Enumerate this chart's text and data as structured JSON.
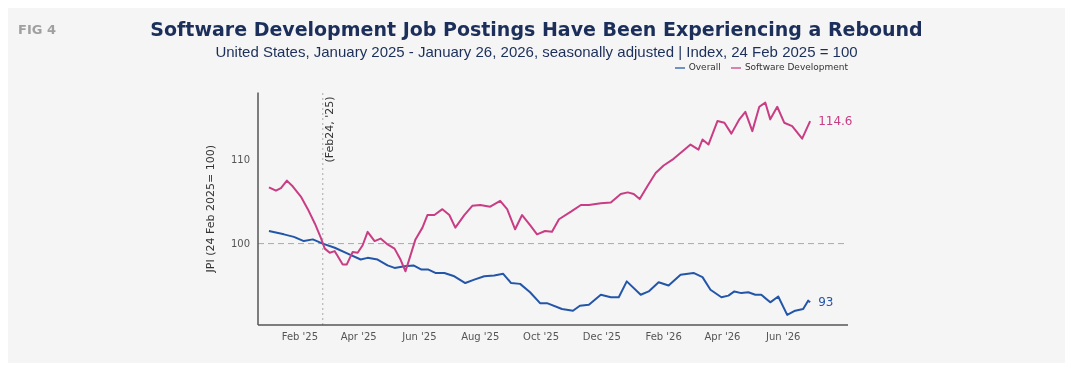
{
  "chart_data": {
    "type": "line",
    "title": "Software Development Job Postings Have Been Experiencing a Rebound",
    "subtitle": "United States, January 2025 - January 26, 2026, seasonally adjusted | Index, 24 Feb 2025 = 100",
    "ylabel": "JPI (24 Feb 2025= 100)",
    "annotations": [
      "FIG 4"
    ],
    "legend": "top right",
    "grid": false,
    "marker": "none",
    "line_style": "solid",
    "xlim": [
      "2024-12-21",
      "2026-08-05"
    ],
    "xticks": [
      {
        "value": "2025-02-01",
        "label": "Feb '25"
      },
      {
        "value": "2025-04-01",
        "label": "Apr '25"
      },
      {
        "value": "2025-06-01",
        "label": "Jun '25"
      },
      {
        "value": "2025-08-01",
        "label": "Aug '25"
      },
      {
        "value": "2025-10-01",
        "label": "Oct '25"
      },
      {
        "value": "2025-12-01",
        "label": "Dec '25"
      },
      {
        "value": "2026-02-01",
        "label": "Feb '26"
      },
      {
        "value": "2026-04-01",
        "label": "Apr '26"
      },
      {
        "value": "2026-06-01",
        "label": "Jun '26"
      }
    ],
    "ylim": [
      90.3,
      118
    ],
    "yticks": [
      100,
      110
    ],
    "ref_lines": [
      {
        "axis": "x",
        "value": "2025-02-24",
        "label": "(Feb24, '25)",
        "color": "#aaaaaa",
        "line_style": "dotted"
      },
      {
        "axis": "y",
        "value": 100,
        "label": null,
        "color": "#aaaaaa",
        "line_style": "dashed"
      }
    ],
    "series": [
      {
        "name": "Overall",
        "color": "#2356a8",
        "x": [
          "2025-01-01",
          "2025-01-16",
          "2025-01-26",
          "2025-02-05",
          "2025-02-14",
          "2025-02-24",
          "2025-03-08",
          "2025-03-21",
          "2025-04-03",
          "2025-04-10",
          "2025-04-20",
          "2025-04-30",
          "2025-05-07",
          "2025-05-17",
          "2025-05-26",
          "2025-06-03",
          "2025-06-10",
          "2025-06-17",
          "2025-06-26",
          "2025-07-06",
          "2025-07-17",
          "2025-07-26",
          "2025-08-05",
          "2025-08-15",
          "2025-08-24",
          "2025-09-01",
          "2025-09-10",
          "2025-09-20",
          "2025-09-30",
          "2025-10-07",
          "2025-10-22",
          "2025-11-02",
          "2025-11-09",
          "2025-11-18",
          "2025-11-30",
          "2025-12-10",
          "2025-12-18",
          "2025-12-26",
          "2026-01-09",
          "2026-01-17",
          "2026-01-27",
          "2026-02-06",
          "2026-02-18",
          "2026-03-03",
          "2026-03-12",
          "2026-03-20",
          "2026-03-31",
          "2026-04-07",
          "2026-04-13",
          "2026-04-20",
          "2026-04-27",
          "2026-05-04",
          "2026-05-10",
          "2026-05-19",
          "2026-05-27",
          "2026-06-05",
          "2026-06-13",
          "2026-06-21",
          "2026-06-26",
          "2026-06-28"
        ],
        "values": [
          101.5,
          101.1,
          100.8,
          100.3,
          100.5,
          100.0,
          99.5,
          98.8,
          98.1,
          98.3,
          98.1,
          97.4,
          97.1,
          97.3,
          97.4,
          96.9,
          96.9,
          96.5,
          96.5,
          96.1,
          95.3,
          95.7,
          96.1,
          96.2,
          96.4,
          95.3,
          95.2,
          94.2,
          92.9,
          92.9,
          92.2,
          92.0,
          92.6,
          92.7,
          93.9,
          93.6,
          93.6,
          95.5,
          93.9,
          94.3,
          95.4,
          95.0,
          96.3,
          96.5,
          96.0,
          94.5,
          93.6,
          93.8,
          94.3,
          94.1,
          94.2,
          93.9,
          93.9,
          93.0,
          93.7,
          91.5,
          92.0,
          92.2,
          93.2,
          93
        ],
        "value_labels": [
          null,
          null,
          null,
          null,
          null,
          null,
          null,
          null,
          null,
          null,
          null,
          null,
          null,
          null,
          null,
          null,
          null,
          null,
          null,
          null,
          null,
          null,
          null,
          null,
          null,
          null,
          null,
          null,
          null,
          null,
          null,
          null,
          null,
          null,
          null,
          null,
          null,
          null,
          null,
          null,
          null,
          null,
          null,
          null,
          null,
          null,
          null,
          null,
          null,
          null,
          null,
          null,
          null,
          null,
          null,
          null,
          null,
          null,
          null,
          "93"
        ]
      },
      {
        "name": "Software Development",
        "color": "#c83d84",
        "x": [
          "2025-01-01",
          "2025-01-08",
          "2025-01-13",
          "2025-01-19",
          "2025-01-25",
          "2025-02-02",
          "2025-02-09",
          "2025-02-16",
          "2025-02-22",
          "2025-02-26",
          "2025-03-03",
          "2025-03-08",
          "2025-03-16",
          "2025-03-20",
          "2025-03-26",
          "2025-03-31",
          "2025-04-05",
          "2025-04-10",
          "2025-04-17",
          "2025-04-23",
          "2025-04-30",
          "2025-05-07",
          "2025-05-13",
          "2025-05-18",
          "2025-05-23",
          "2025-05-28",
          "2025-06-04",
          "2025-06-09",
          "2025-06-16",
          "2025-06-24",
          "2025-07-01",
          "2025-07-07",
          "2025-07-16",
          "2025-07-24",
          "2025-08-01",
          "2025-08-11",
          "2025-08-21",
          "2025-08-28",
          "2025-09-05",
          "2025-09-12",
          "2025-09-20",
          "2025-09-27",
          "2025-10-05",
          "2025-10-12",
          "2025-10-19",
          "2025-10-31",
          "2025-11-10",
          "2025-11-18",
          "2025-11-30",
          "2025-12-10",
          "2025-12-20",
          "2025-12-27",
          "2026-01-02",
          "2026-01-08",
          "2026-01-16",
          "2026-01-24",
          "2026-02-01",
          "2026-02-11",
          "2026-02-20",
          "2026-02-28",
          "2026-03-08",
          "2026-03-12",
          "2026-03-18",
          "2026-03-27",
          "2026-04-03",
          "2026-04-10",
          "2026-04-18",
          "2026-04-24",
          "2026-05-01",
          "2026-05-08",
          "2026-05-14",
          "2026-05-19",
          "2026-05-26",
          "2026-06-02",
          "2026-06-10",
          "2026-06-20",
          "2026-06-28"
        ],
        "values": [
          106.7,
          106.3,
          106.6,
          107.5,
          106.8,
          105.6,
          104.1,
          102.4,
          100.7,
          99.4,
          98.9,
          99.1,
          97.5,
          97.5,
          99.0,
          98.9,
          99.8,
          101.4,
          100.3,
          100.6,
          99.9,
          99.4,
          98.1,
          96.7,
          98.6,
          100.5,
          101.9,
          103.4,
          103.4,
          104.1,
          103.4,
          101.9,
          103.4,
          104.5,
          104.6,
          104.4,
          105.1,
          104.1,
          101.7,
          103.4,
          102.2,
          101.1,
          101.5,
          101.4,
          102.9,
          103.8,
          104.6,
          104.6,
          104.8,
          104.9,
          105.9,
          106.1,
          105.9,
          105.3,
          106.9,
          108.4,
          109.3,
          110.1,
          111.0,
          111.8,
          111.2,
          112.4,
          111.8,
          114.6,
          114.4,
          113.1,
          114.8,
          115.7,
          113.4,
          116.3,
          116.8,
          114.8,
          116.3,
          114.4,
          114.0,
          112.5,
          114.6
        ],
        "value_labels": [
          null,
          null,
          null,
          null,
          null,
          null,
          null,
          null,
          null,
          null,
          null,
          null,
          null,
          null,
          null,
          null,
          null,
          null,
          null,
          null,
          null,
          null,
          null,
          null,
          null,
          null,
          null,
          null,
          null,
          null,
          null,
          null,
          null,
          null,
          null,
          null,
          null,
          null,
          null,
          null,
          null,
          null,
          null,
          null,
          null,
          null,
          null,
          null,
          null,
          null,
          null,
          null,
          null,
          null,
          null,
          null,
          null,
          null,
          null,
          null,
          null,
          null,
          null,
          null,
          null,
          null,
          null,
          null,
          null,
          null,
          null,
          null,
          null,
          null,
          null,
          null,
          "114.6"
        ]
      }
    ]
  }
}
